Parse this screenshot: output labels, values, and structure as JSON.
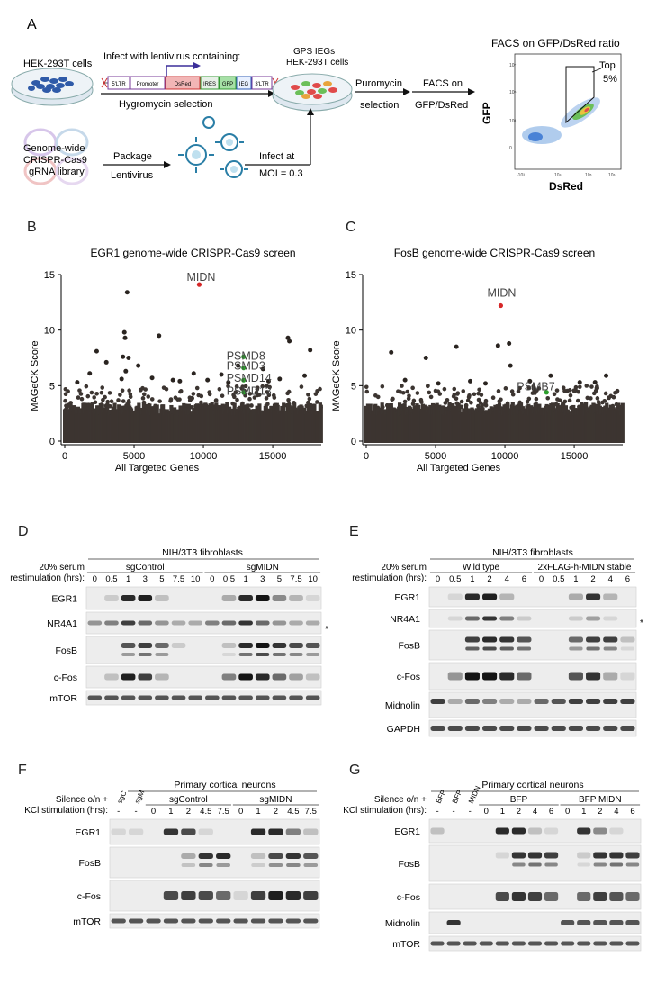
{
  "panelA": {
    "letter": "A",
    "hek_cells": "HEK-293T cells",
    "infect_label": "Infect with lentivirus containing:",
    "construct": [
      "5'LTR",
      "Promoter",
      "DsRed",
      "IRES",
      "GFP",
      "IEG",
      "3'LTR"
    ],
    "hygro": "Hygromycin selection",
    "gps_line1": "GPS IEGs",
    "gps_line2": "HEK-293T cells",
    "puro_line1": "Puromycin",
    "puro_line2": "selection",
    "facs_on_line1": "FACS on",
    "facs_on_line2": "GFP/DsRed",
    "facs_title": "FACS on GFP/DsRed ratio",
    "top_line1": "Top",
    "top_line2": "5%",
    "facs_ylabel": "GFP",
    "facs_xlabel": "DsRed",
    "library_line1": "Genome-wide",
    "library_line2": "CRISPR-Cas9",
    "library_line3": "gRNA library",
    "package_line1": "Package",
    "package_line2": "Lentivirus",
    "infect_at_line1": "Infect at",
    "infect_at_line2": "MOI = 0.3"
  },
  "chart_data": [
    {
      "panel": "B",
      "type": "scatter",
      "title": "EGR1 genome-wide CRISPR-Cas9 screen",
      "xlabel": "All Targeted Genes",
      "ylabel": "MAGeCK Score",
      "xlim": [
        0,
        18500
      ],
      "ylim": [
        0,
        15
      ],
      "xticks": [
        0,
        5000,
        10000,
        15000
      ],
      "yticks": [
        0,
        5,
        10,
        15
      ],
      "highlights": [
        {
          "label": "MIDN",
          "x": 9700,
          "y": 14.1,
          "color": "#d62728"
        },
        {
          "label": "PSMD8",
          "x": 12900,
          "y": 7.6,
          "color": "#2ca02c"
        },
        {
          "label": "PSMD3",
          "x": 12900,
          "y": 6.6,
          "color": "#2ca02c"
        },
        {
          "label": "PSMD14",
          "x": 12900,
          "y": 5.5,
          "color": "#2ca02c"
        },
        {
          "label": "PSMD13",
          "x": 12900,
          "y": 4.4,
          "color": "#2ca02c"
        }
      ],
      "outliers": [
        [
          4500,
          13.4
        ],
        [
          4300,
          9.8
        ],
        [
          4350,
          9.3
        ],
        [
          4200,
          7.6
        ],
        [
          4600,
          7.5
        ],
        [
          4400,
          6.3
        ],
        [
          4100,
          5.6
        ],
        [
          2300,
          8.1
        ],
        [
          1800,
          6.1
        ],
        [
          3000,
          7.1
        ],
        [
          6800,
          9.5
        ],
        [
          5300,
          6.8
        ],
        [
          6300,
          5.7
        ],
        [
          7800,
          5.5
        ],
        [
          8300,
          5.4
        ],
        [
          9300,
          6.1
        ],
        [
          10300,
          5.5
        ],
        [
          11300,
          6.0
        ],
        [
          12500,
          6.8
        ],
        [
          14300,
          6.5
        ],
        [
          14700,
          5.4
        ],
        [
          16100,
          9.3
        ],
        [
          16200,
          9.0
        ],
        [
          17700,
          8.2
        ],
        [
          17300,
          5.9
        ],
        [
          900,
          5.3
        ],
        [
          15500,
          5.6
        ],
        [
          11800,
          5.3
        ]
      ]
    },
    {
      "panel": "C",
      "type": "scatter",
      "title": "FosB genome-wide CRISPR-Cas9 screen",
      "xlabel": "All Targeted Genes",
      "ylabel": "MAGeCK Score",
      "xlim": [
        0,
        18500
      ],
      "ylim": [
        0,
        15
      ],
      "xticks": [
        0,
        5000,
        10000,
        15000
      ],
      "yticks": [
        0,
        5,
        10,
        15
      ],
      "highlights": [
        {
          "label": "MIDN",
          "x": 9700,
          "y": 12.2,
          "color": "#d62728"
        },
        {
          "label": "PSMB7",
          "x": 13000,
          "y": 4.4,
          "color": "#2ca02c"
        }
      ],
      "outliers": [
        [
          1800,
          8.0
        ],
        [
          4300,
          7.5
        ],
        [
          6500,
          8.5
        ],
        [
          9500,
          8.6
        ],
        [
          10300,
          8.8
        ],
        [
          10400,
          6.8
        ],
        [
          13300,
          5.9
        ],
        [
          17300,
          5.9
        ],
        [
          2800,
          5.5
        ],
        [
          7500,
          5.4
        ],
        [
          11800,
          5.4
        ],
        [
          15400,
          5.3
        ],
        [
          5200,
          5.2
        ],
        [
          8600,
          5.2
        ],
        [
          16500,
          5.3
        ]
      ]
    }
  ],
  "blots": {
    "D": {
      "letter": "D",
      "title": "NIH/3T3 fibroblasts",
      "row1_label": "20% serum",
      "row2_label": "restimulation (hrs):",
      "groups": [
        "sgControl",
        "sgMIDN"
      ],
      "lanes": [
        "0",
        "0.5",
        "1",
        "3",
        "5",
        "7.5",
        "10",
        "0",
        "0.5",
        "1",
        "3",
        "5",
        "7.5",
        "10"
      ],
      "proteins": [
        "EGR1",
        "NR4A1",
        "FosB",
        "c-Fos",
        "mTOR"
      ],
      "asterisk": "*"
    },
    "E": {
      "letter": "E",
      "title": "NIH/3T3 fibroblasts",
      "row1_label": "20% serum",
      "row2_label": "restimulation (hrs):",
      "groups": [
        "Wild type",
        "2xFLAG-h-MIDN stable"
      ],
      "lanes": [
        "0",
        "0.5",
        "1",
        "2",
        "4",
        "6",
        "0",
        "0.5",
        "1",
        "2",
        "4",
        "6"
      ],
      "proteins": [
        "EGR1",
        "NR4A1",
        "FosB",
        "c-Fos",
        "Midnolin",
        "GAPDH"
      ],
      "asterisk": "*"
    },
    "F": {
      "letter": "F",
      "title": "Primary cortical neurons",
      "row1_label": "Silence o/n +",
      "row2_label": "KCl stimulation (hrs):",
      "groups": [
        "sgC",
        "sgM",
        "sgControl",
        "sgMIDN"
      ],
      "lanes": [
        "-",
        "-",
        "0",
        "1",
        "2",
        "4.5",
        "7.5",
        "0",
        "1",
        "2",
        "4.5",
        "7.5"
      ],
      "proteins": [
        "EGR1",
        "FosB",
        "c-Fos",
        "mTOR"
      ]
    },
    "G": {
      "letter": "G",
      "title": "Primary cortical neurons",
      "row1_label": "Silence o/n +",
      "row2_label": "KCl stimulation (hrs):",
      "groups": [
        "BFP",
        "BFP",
        "MIDN",
        "BFP",
        "BFP MIDN"
      ],
      "lanes": [
        "-",
        "-",
        "-",
        "0",
        "1",
        "2",
        "4",
        "6",
        "0",
        "1",
        "2",
        "4",
        "6"
      ],
      "proteins": [
        "EGR1",
        "FosB",
        "c-Fos",
        "Midnolin",
        "mTOR"
      ]
    }
  }
}
